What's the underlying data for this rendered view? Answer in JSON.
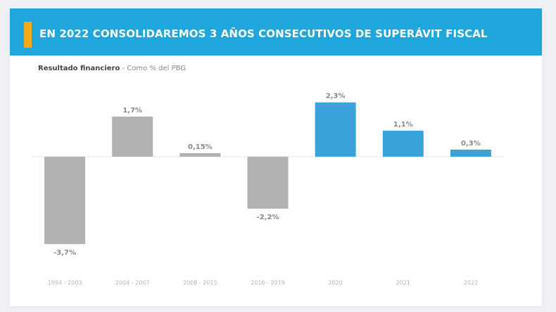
{
  "header": {
    "title": "EN 2022 CONSOLIDAREMOS 3 AÑOS CONSECUTIVOS DE SUPERÁVIT FISCAL",
    "accent_color": "#f0a81c",
    "banner_color": "#1fa6dc"
  },
  "chart_data": {
    "type": "bar",
    "title": "Resultado financiero",
    "unit_label": "- Como % del PBG",
    "xlabel": "",
    "ylabel": "",
    "ylim": [
      -3.7,
      2.3
    ],
    "grid": false,
    "categories": [
      "1994 - 2003",
      "2004 - 2007",
      "2008 - 2015",
      "2016 - 2019",
      "2020",
      "2021",
      "2022"
    ],
    "values": [
      -3.7,
      1.7,
      0.15,
      -2.2,
      2.3,
      1.1,
      0.3
    ],
    "value_labels": [
      "-3,7%",
      "1,7%",
      "0,15%",
      "-2,2%",
      "2,3%",
      "1,1%",
      "0,3%"
    ],
    "colors": [
      "#b1b2b4",
      "#b1b2b4",
      "#b1b2b4",
      "#b1b2b4",
      "#3aa3dc",
      "#3aa3dc",
      "#3aa3dc"
    ]
  }
}
